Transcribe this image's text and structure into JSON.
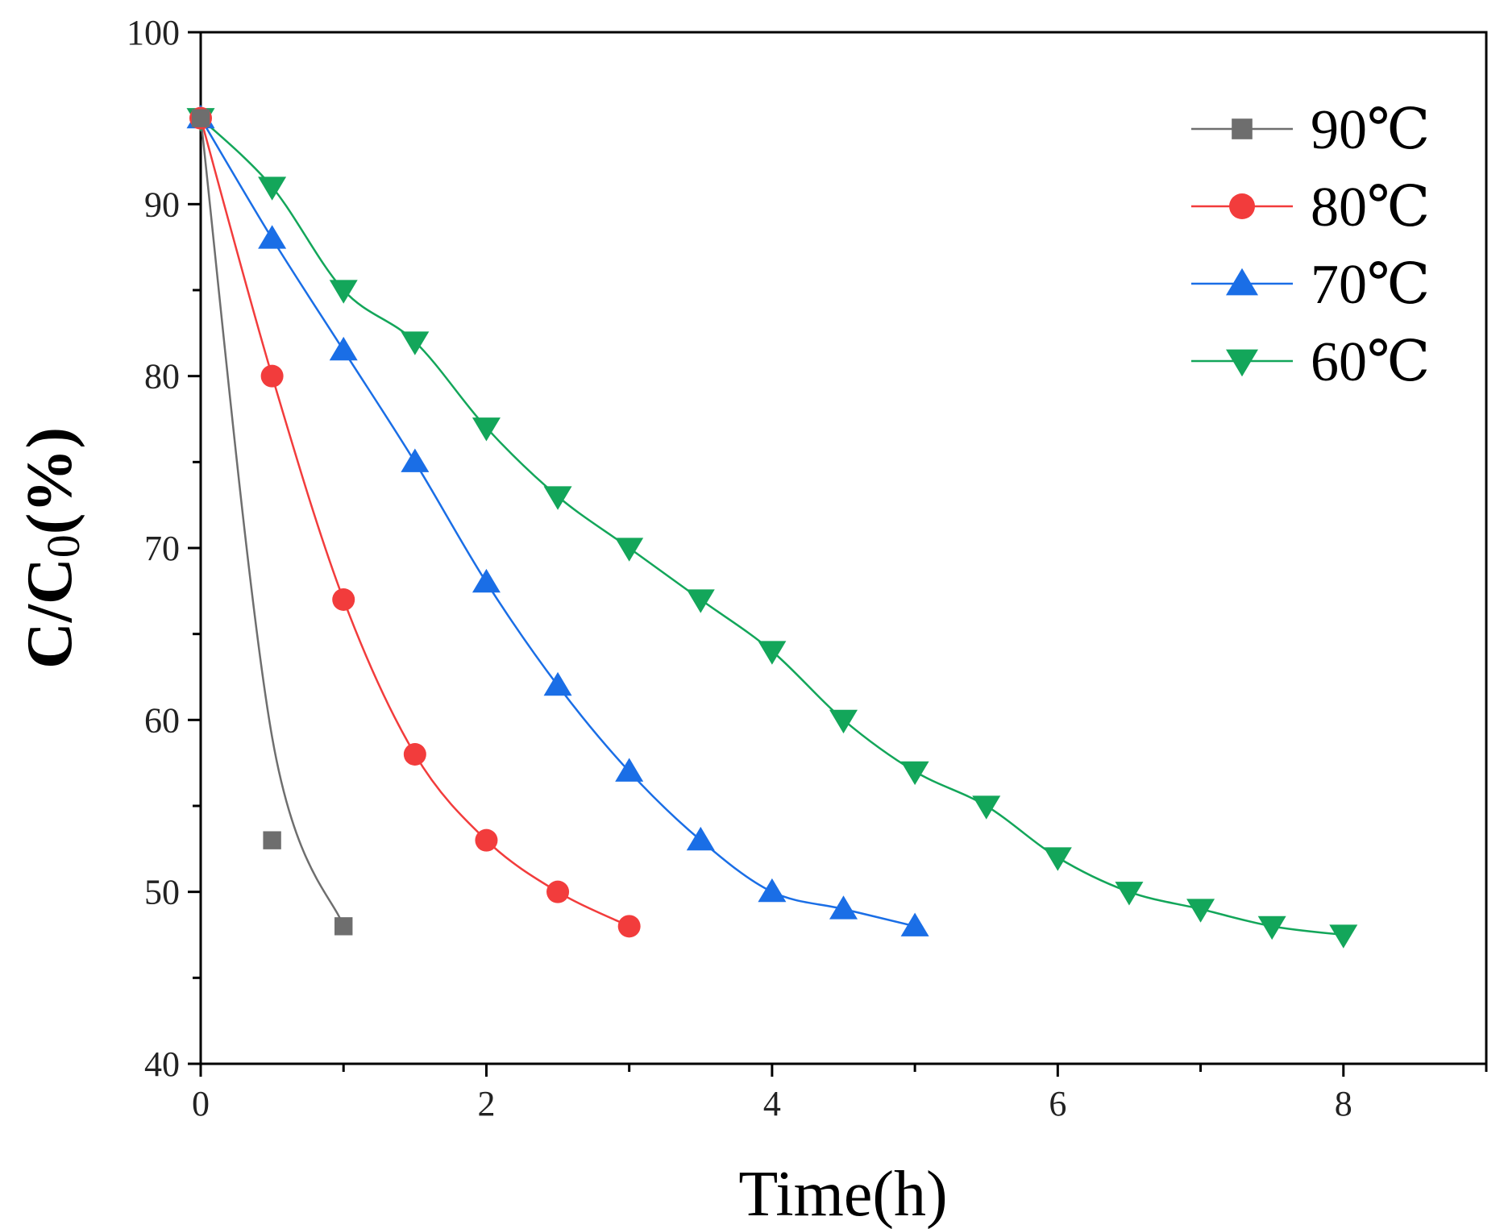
{
  "chart_data": {
    "type": "line",
    "title": "",
    "xlabel": "Time(h)",
    "ylabel": "C/C0(%)",
    "xlim": [
      0,
      9
    ],
    "ylim": [
      40,
      100
    ],
    "xticks": [
      0,
      2,
      4,
      6,
      8
    ],
    "yticks": [
      40,
      50,
      60,
      70,
      80,
      90,
      100
    ],
    "x_minor_step": 1,
    "y_minor_step": 5,
    "grid": false,
    "legend_position": "top-right",
    "series": [
      {
        "name": "90℃",
        "color": "#6e6e6e",
        "marker": "square",
        "x": [
          0,
          0.5,
          1
        ],
        "y": [
          95,
          53,
          48
        ],
        "curve_y": [
          95,
          59,
          48
        ]
      },
      {
        "name": "80℃",
        "color": "#f23c3c",
        "marker": "circle",
        "x": [
          0,
          0.5,
          1,
          1.5,
          2,
          2.5,
          3
        ],
        "y": [
          95,
          80,
          67,
          58,
          53,
          50,
          48
        ]
      },
      {
        "name": "70℃",
        "color": "#1a6ee6",
        "marker": "triangle-up",
        "x": [
          0,
          0.5,
          1,
          1.5,
          2,
          2.5,
          3,
          3.5,
          4,
          4.5,
          5
        ],
        "y": [
          95,
          88,
          81.5,
          75,
          68,
          62,
          57,
          53,
          50,
          49,
          48
        ]
      },
      {
        "name": "60℃",
        "color": "#13a65a",
        "marker": "triangle-down",
        "x": [
          0,
          0.5,
          1,
          1.5,
          2,
          2.5,
          3,
          3.5,
          4,
          4.5,
          5,
          5.5,
          6,
          6.5,
          7,
          7.5,
          8
        ],
        "y": [
          95,
          91,
          85,
          82,
          77,
          73,
          70,
          67,
          64,
          60,
          57,
          55,
          52,
          50,
          49,
          48,
          47.5
        ]
      }
    ]
  }
}
